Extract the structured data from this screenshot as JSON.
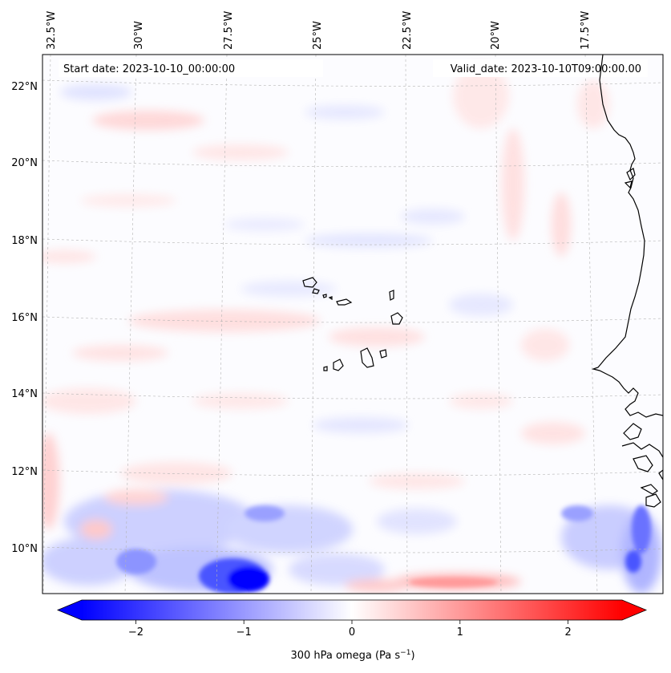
{
  "header": {
    "start_date": "Start date: 2023-10-10_00:00:00",
    "valid_date": "Valid_date: 2023-10-10T09:00:00.00"
  },
  "longitude_labels": [
    "32.5°W",
    "30°W",
    "27.5°W",
    "25°W",
    "22.5°W",
    "20°W",
    "17.5°W"
  ],
  "latitude_labels": [
    "22°N",
    "20°N",
    "18°N",
    "16°N",
    "14°N",
    "12°N",
    "10°N"
  ],
  "colorbar": {
    "ticks": [
      "−2",
      "−1",
      "0",
      "1",
      "2"
    ],
    "tick_values": [
      -2,
      -1,
      0,
      1,
      2
    ],
    "range": [
      -2.5,
      2.5
    ],
    "label_main": "300 hPa omega (Pa s",
    "label_sup": "−1",
    "label_end": ")",
    "colormap": "bwr",
    "colors": {
      "negative": "#0000ff",
      "zero": "#ffffff",
      "positive": "#ff0000"
    }
  },
  "map_data": {
    "type": "filled-contour",
    "lon_range": [
      -32.8,
      -16.3
    ],
    "lat_range": [
      8.9,
      22.8
    ],
    "gridlines": true,
    "coastline_color": "#000000"
  }
}
